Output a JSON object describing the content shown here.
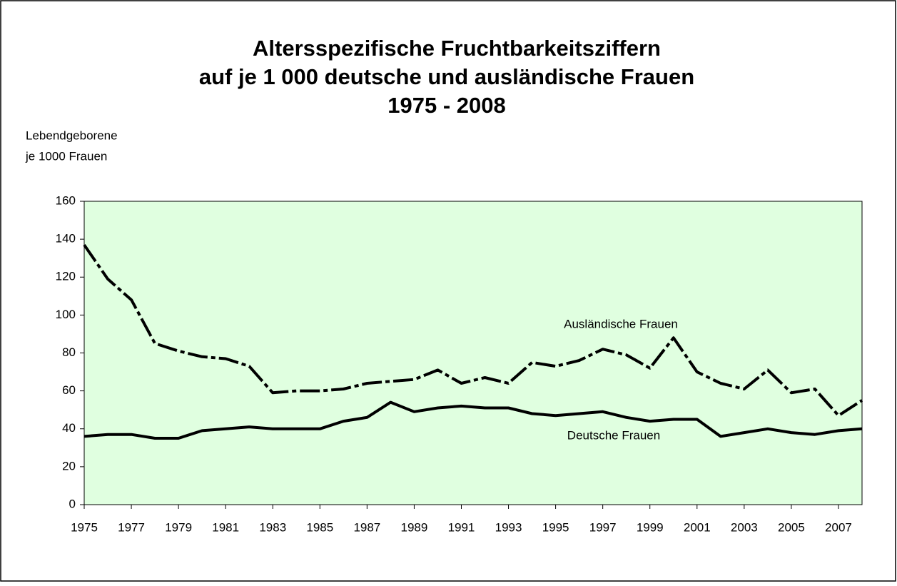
{
  "chart_data": {
    "type": "line",
    "title": [
      "Altersspezifische Fruchtbarkeitsziffern",
      "auf je 1 000  deutsche und ausländische Frauen",
      "1975 - 2008"
    ],
    "y_label": [
      "Lebendgeborene",
      "je 1000 Frauen"
    ],
    "x": [
      1975,
      1976,
      1977,
      1978,
      1979,
      1980,
      1981,
      1982,
      1983,
      1984,
      1985,
      1986,
      1987,
      1988,
      1989,
      1990,
      1991,
      1992,
      1993,
      1994,
      1995,
      1996,
      1997,
      1998,
      1999,
      2000,
      2001,
      2002,
      2003,
      2004,
      2005,
      2006,
      2007,
      2008
    ],
    "series": [
      {
        "name": "Ausländische Frauen",
        "color": "#000000",
        "dash": true,
        "values": [
          137,
          119,
          108,
          85,
          81,
          78,
          77,
          73,
          59,
          60,
          60,
          61,
          64,
          65,
          66,
          71,
          64,
          67,
          64,
          75,
          73,
          76,
          82,
          79,
          72,
          88,
          70,
          64,
          61,
          71,
          59,
          61,
          47,
          55
        ]
      },
      {
        "name": "Deutsche Frauen",
        "color": "#000000",
        "dash": false,
        "values": [
          36,
          37,
          37,
          35,
          35,
          39,
          40,
          41,
          40,
          40,
          40,
          44,
          46,
          54,
          49,
          51,
          52,
          51,
          51,
          48,
          47,
          48,
          49,
          46,
          44,
          45,
          45,
          36,
          38,
          40,
          38,
          37,
          39,
          40
        ]
      }
    ],
    "xlim": [
      1975,
      2008
    ],
    "xticks": [
      1975,
      1977,
      1979,
      1981,
      1983,
      1985,
      1987,
      1989,
      1991,
      1993,
      1995,
      1997,
      1999,
      2001,
      2003,
      2005,
      2007
    ],
    "ylim": [
      0,
      160
    ],
    "yticks": [
      0,
      20,
      40,
      60,
      80,
      100,
      120,
      140,
      160
    ],
    "plot_background": "#e0ffe0"
  }
}
